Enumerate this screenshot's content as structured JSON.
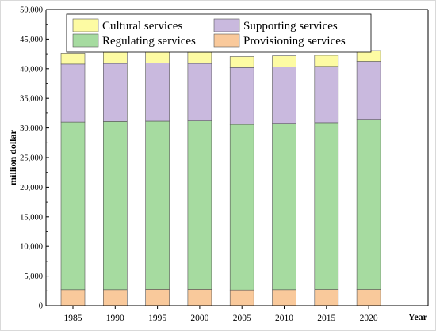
{
  "chart_data": {
    "type": "bar",
    "stacked": true,
    "categories": [
      "1985",
      "1990",
      "1995",
      "2000",
      "2005",
      "2010",
      "2015",
      "2020"
    ],
    "series": [
      {
        "name": "Provisioning services",
        "color": "#f9c99b",
        "values": [
          2700,
          2700,
          2750,
          2750,
          2650,
          2700,
          2750,
          2750
        ]
      },
      {
        "name": "Regulating services",
        "color": "#a6dba0",
        "values": [
          28300,
          28400,
          28400,
          28450,
          27950,
          28100,
          28150,
          28700
        ]
      },
      {
        "name": "Supporting services",
        "color": "#c9b9de",
        "values": [
          9800,
          9800,
          9800,
          9700,
          9600,
          9500,
          9500,
          9800
        ]
      },
      {
        "name": "Cultural services",
        "color": "#fdfba3",
        "values": [
          1800,
          1850,
          1850,
          1850,
          1850,
          1850,
          1850,
          1800
        ]
      }
    ],
    "ylabel": "million dollar",
    "xlabel": "Year",
    "ylim": [
      0,
      50000
    ],
    "yticks": [
      0,
      5000,
      10000,
      15000,
      20000,
      25000,
      30000,
      35000,
      40000,
      45000,
      50000
    ],
    "ytick_labels": [
      "0",
      "5,000",
      "10,000",
      "15,000",
      "20,000",
      "25,000",
      "30,000",
      "35,000",
      "40,000",
      "45,000",
      "50,000"
    ],
    "legend": {
      "placement": "top-center",
      "order": [
        "Cultural services",
        "Supporting services",
        "Regulating services",
        "Provisioning services"
      ]
    },
    "grid": false
  }
}
